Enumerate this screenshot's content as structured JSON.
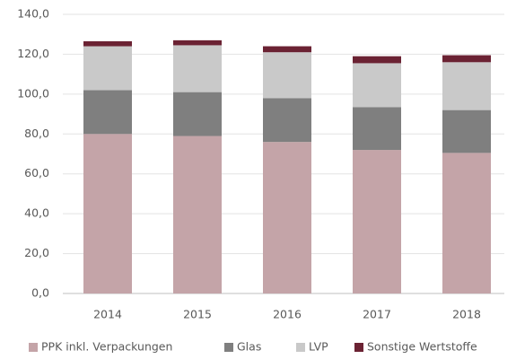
{
  "chart_data": {
    "type": "stacked-bar",
    "categories": [
      "2014",
      "2015",
      "2016",
      "2017",
      "2018"
    ],
    "series": [
      {
        "name": "PPK inkl. Verpackungen",
        "color": "#c4a4a8",
        "values": [
          80,
          79,
          76,
          72,
          70.5
        ]
      },
      {
        "name": "Glas",
        "color": "#7f7f7f",
        "values": [
          22,
          22,
          22,
          21.5,
          21.5
        ]
      },
      {
        "name": "LVP",
        "color": "#c9c9c9",
        "values": [
          22,
          23.5,
          23,
          22,
          24
        ]
      },
      {
        "name": "Sonstige Wertstoffe",
        "color": "#6b2233",
        "values": [
          2.5,
          2.5,
          3,
          3.5,
          3.5
        ]
      }
    ],
    "ylim": [
      0,
      140
    ],
    "yticks": [
      {
        "value": 0,
        "label": "0,0"
      },
      {
        "value": 20,
        "label": "20,0"
      },
      {
        "value": 40,
        "label": "40,0"
      },
      {
        "value": 60,
        "label": "60,0"
      },
      {
        "value": 80,
        "label": "80,0"
      },
      {
        "value": 100,
        "label": "100,0"
      },
      {
        "value": 120,
        "label": "120,0"
      },
      {
        "value": 140,
        "label": "140,0"
      }
    ],
    "grid": true,
    "legend": "bottom"
  }
}
